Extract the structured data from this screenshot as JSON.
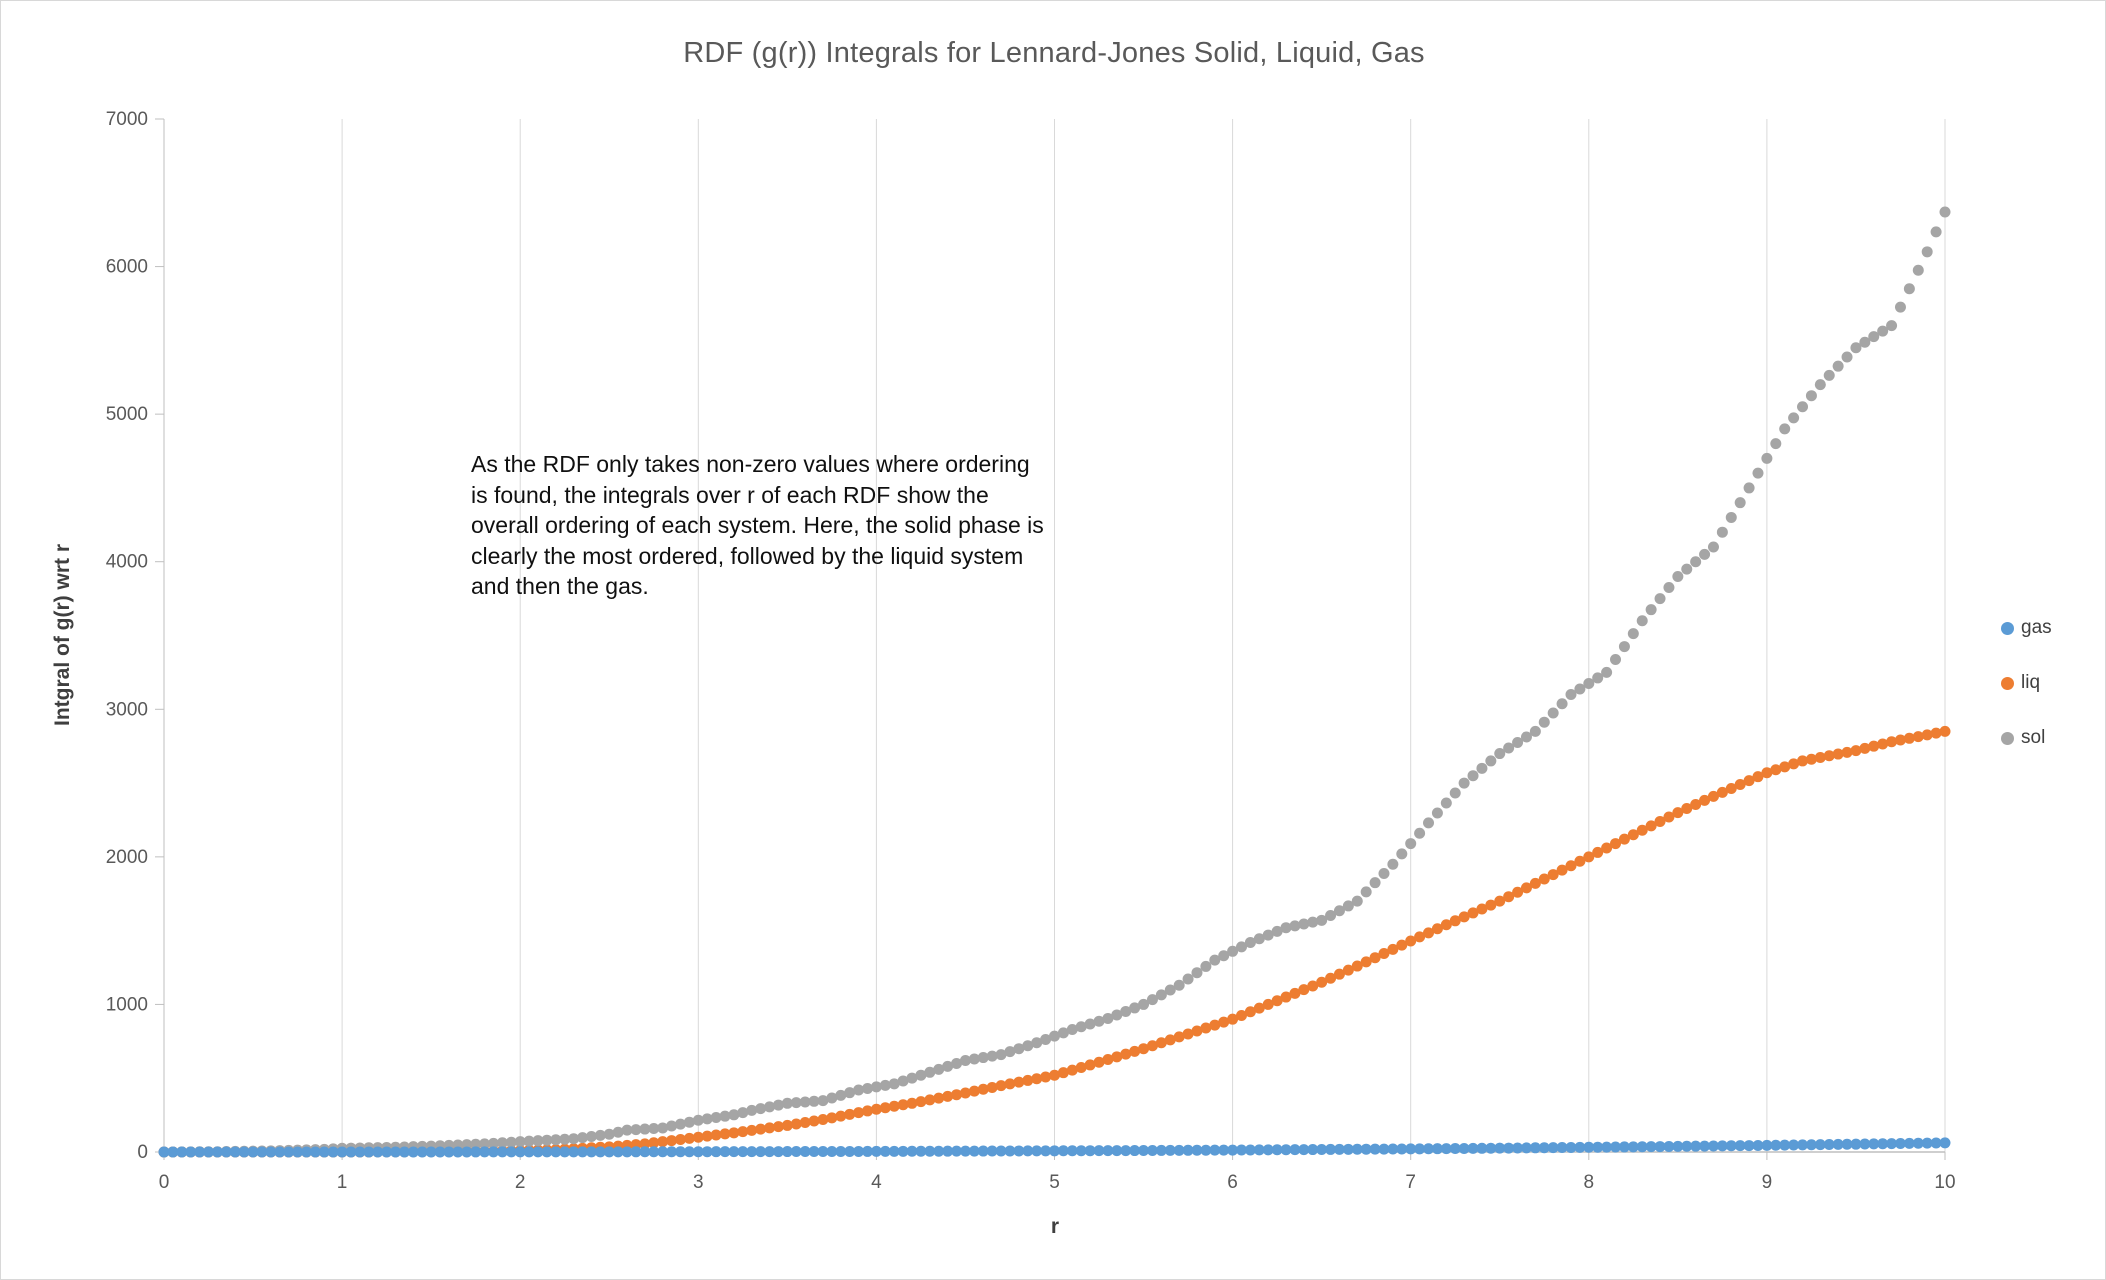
{
  "chart_data": {
    "type": "scatter",
    "title": "RDF (g(r)) Integrals for Lennard-Jones Solid, Liquid, Gas",
    "xlabel": "r",
    "ylabel": "Intgral of g(r) wrt r",
    "annotation": "As the RDF only takes non-zero values where ordering\nis found, the integrals over r of each RDF show the\noverall ordering of each system. Here, the solid phase is\nclearly the most ordered, followed by the liquid system\nand then the gas.",
    "xlim": [
      0,
      10
    ],
    "ylim": [
      0,
      7000
    ],
    "x_ticks": [
      0,
      1,
      2,
      3,
      4,
      5,
      6,
      7,
      8,
      9,
      10
    ],
    "y_ticks": [
      0,
      1000,
      2000,
      3000,
      4000,
      5000,
      6000,
      7000
    ],
    "grid": "vertical-only",
    "legend_position": "right",
    "marker_radius": 5.5,
    "render_step": 0.05,
    "colors": {
      "gridline": "#d9d9d9",
      "axis": "#bfbfbf",
      "tick_text": "#595959"
    },
    "series": [
      {
        "name": "gas",
        "color": "#5b9bd5",
        "points": [
          [
            0,
            0
          ],
          [
            0.5,
            0
          ],
          [
            1,
            0
          ],
          [
            1.5,
            0
          ],
          [
            2,
            1
          ],
          [
            2.5,
            1
          ],
          [
            3,
            2
          ],
          [
            3.5,
            3
          ],
          [
            4,
            4
          ],
          [
            4.5,
            6
          ],
          [
            5,
            8
          ],
          [
            5.5,
            10
          ],
          [
            6,
            13
          ],
          [
            6.5,
            17
          ],
          [
            7,
            21
          ],
          [
            7.5,
            26
          ],
          [
            8,
            32
          ],
          [
            8.5,
            38
          ],
          [
            9,
            45
          ],
          [
            9.5,
            53
          ],
          [
            10,
            62
          ]
        ]
      },
      {
        "name": "liq",
        "color": "#ed7d31",
        "points": [
          [
            0,
            0
          ],
          [
            0.5,
            0
          ],
          [
            1,
            0
          ],
          [
            1.3,
            1
          ],
          [
            1.5,
            2
          ],
          [
            1.8,
            5
          ],
          [
            2,
            10
          ],
          [
            2.2,
            16
          ],
          [
            2.5,
            35
          ],
          [
            2.7,
            55
          ],
          [
            3,
            100
          ],
          [
            3.2,
            130
          ],
          [
            3.5,
            180
          ],
          [
            3.7,
            220
          ],
          [
            4,
            290
          ],
          [
            4.2,
            330
          ],
          [
            4.5,
            400
          ],
          [
            4.7,
            450
          ],
          [
            5,
            520
          ],
          [
            5.2,
            590
          ],
          [
            5.5,
            700
          ],
          [
            5.7,
            780
          ],
          [
            6,
            900
          ],
          [
            6.2,
            1000
          ],
          [
            6.5,
            1150
          ],
          [
            6.7,
            1260
          ],
          [
            7,
            1430
          ],
          [
            7.2,
            1540
          ],
          [
            7.5,
            1700
          ],
          [
            7.7,
            1820
          ],
          [
            8,
            2000
          ],
          [
            8.2,
            2120
          ],
          [
            8.5,
            2300
          ],
          [
            8.7,
            2410
          ],
          [
            9,
            2570
          ],
          [
            9.2,
            2650
          ],
          [
            9.5,
            2720
          ],
          [
            9.7,
            2780
          ],
          [
            10,
            2850
          ]
        ]
      },
      {
        "name": "sol",
        "color": "#a5a5a5",
        "points": [
          [
            0,
            0
          ],
          [
            0.3,
            2
          ],
          [
            0.6,
            8
          ],
          [
            0.9,
            18
          ],
          [
            1,
            25
          ],
          [
            1.3,
            32
          ],
          [
            1.5,
            40
          ],
          [
            1.8,
            55
          ],
          [
            2,
            70
          ],
          [
            2.3,
            90
          ],
          [
            2.5,
            120
          ],
          [
            2.6,
            148
          ],
          [
            2.8,
            163
          ],
          [
            3,
            215
          ],
          [
            3.2,
            252
          ],
          [
            3.3,
            282
          ],
          [
            3.5,
            330
          ],
          [
            3.7,
            348
          ],
          [
            3.9,
            420
          ],
          [
            4.1,
            462
          ],
          [
            4.3,
            540
          ],
          [
            4.5,
            620
          ],
          [
            4.7,
            660
          ],
          [
            4.9,
            740
          ],
          [
            5.1,
            830
          ],
          [
            5.3,
            905
          ],
          [
            5.5,
            1000
          ],
          [
            5.7,
            1130
          ],
          [
            5.9,
            1300
          ],
          [
            6.1,
            1420
          ],
          [
            6.3,
            1520
          ],
          [
            6.5,
            1570
          ],
          [
            6.7,
            1700
          ],
          [
            6.9,
            1950
          ],
          [
            7.1,
            2230
          ],
          [
            7.3,
            2500
          ],
          [
            7.5,
            2700
          ],
          [
            7.7,
            2850
          ],
          [
            7.9,
            3100
          ],
          [
            8.1,
            3250
          ],
          [
            8.3,
            3600
          ],
          [
            8.5,
            3900
          ],
          [
            8.7,
            4100
          ],
          [
            8.9,
            4500
          ],
          [
            9.1,
            4900
          ],
          [
            9.3,
            5200
          ],
          [
            9.5,
            5450
          ],
          [
            9.7,
            5600
          ],
          [
            9.9,
            6100
          ],
          [
            10,
            6370
          ]
        ]
      }
    ]
  }
}
